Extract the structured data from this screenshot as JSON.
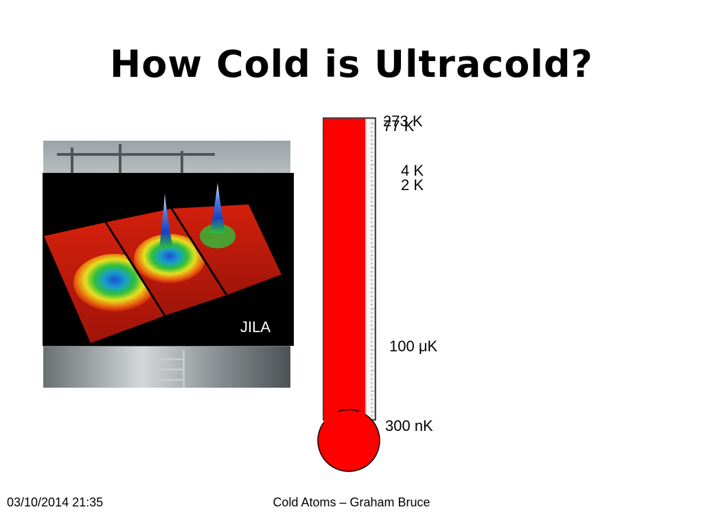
{
  "slide": {
    "title": "How Cold is Ultracold?"
  },
  "image": {
    "credit": "JILA"
  },
  "thermometer": {
    "fluid_color": "#ff0000",
    "labels": {
      "t273": "273 K",
      "t77": "77 K",
      "t4": "4 K",
      "t2": "2 K",
      "t100u": "100 μK",
      "t300n": "300 nK"
    }
  },
  "footer": {
    "date": "03/10/2014 21:35",
    "center": "Cold Atoms – Graham Bruce"
  }
}
